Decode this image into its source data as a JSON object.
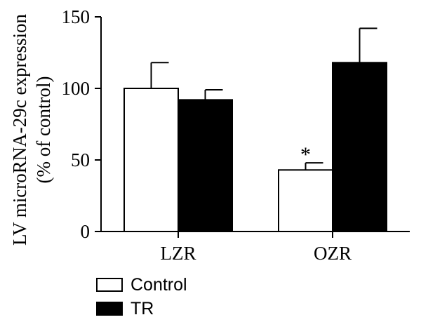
{
  "chart_data": {
    "type": "bar",
    "categories": [
      "LZR",
      "OZR"
    ],
    "series": [
      {
        "name": "Control",
        "values": [
          100,
          43
        ],
        "errors": [
          18,
          5
        ],
        "fill": "#ffffff"
      },
      {
        "name": "TR",
        "values": [
          92,
          118
        ],
        "errors": [
          7,
          24
        ],
        "fill": "#000000"
      }
    ],
    "annotations": [
      {
        "text": "*",
        "series": "Control",
        "category": "OZR"
      }
    ],
    "ylabel": [
      "LV microRNA-29c expression",
      "(% of control)"
    ],
    "xlabel": "",
    "ylim": [
      0,
      150
    ],
    "yticks": [
      0,
      50,
      100,
      150
    ],
    "ytick_labels": [
      "0",
      "50",
      "100",
      "150"
    ],
    "legend_placement": "bottom-left",
    "grid": false
  }
}
